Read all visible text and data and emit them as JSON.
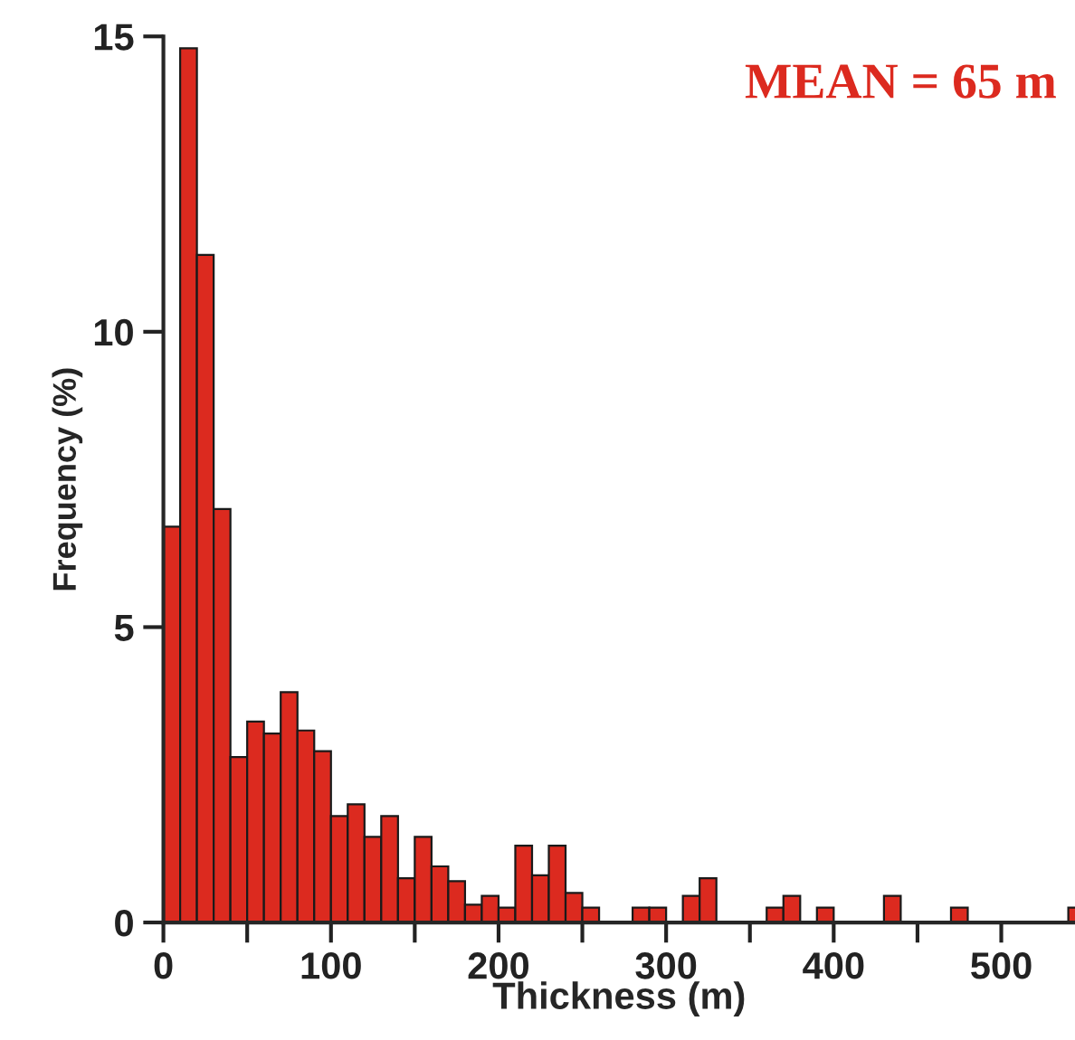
{
  "chart_data": {
    "type": "histogram",
    "xlabel": "Thickness (m)",
    "ylabel": "Frequency (%)",
    "annotations": [
      "MEAN = 65 m"
    ],
    "bins": [
      0,
      10,
      20,
      30,
      40,
      50,
      60,
      70,
      80,
      90,
      100,
      110,
      120,
      130,
      140,
      150,
      160,
      170,
      180,
      190,
      200,
      210,
      220,
      230,
      240,
      250,
      260,
      270,
      280,
      290,
      300,
      310,
      320,
      330,
      340,
      350,
      360,
      370,
      380,
      390,
      400,
      410,
      420,
      430,
      440,
      450,
      460,
      470,
      480,
      490,
      500,
      510,
      520,
      530,
      540,
      550
    ],
    "values": [
      6.7,
      14.8,
      11.3,
      7.0,
      2.8,
      3.4,
      3.2,
      3.9,
      3.25,
      2.9,
      1.8,
      2.0,
      1.45,
      1.8,
      0.75,
      1.45,
      0.95,
      0.7,
      0.3,
      0.45,
      0.25,
      1.3,
      0.8,
      1.3,
      0.5,
      0.25,
      0,
      0,
      0.25,
      0.25,
      0,
      0.45,
      0.75,
      0,
      0,
      0,
      0.25,
      0.45,
      0,
      0.25,
      0,
      0,
      0,
      0.45,
      0,
      0,
      0,
      0.25,
      0,
      0,
      0,
      0,
      0,
      0,
      0.25
    ],
    "color": "#dc2a1f",
    "xlim": [
      0,
      544
    ],
    "ylim": [
      0,
      15
    ],
    "xticks": [
      0,
      {
        "value": 50,
        "label": null
      },
      100,
      {
        "value": 150,
        "label": null
      },
      200,
      {
        "value": 250,
        "label": null
      },
      300,
      {
        "value": 350,
        "label": null
      },
      400,
      {
        "value": 450,
        "label": null
      },
      500
    ],
    "yticks": [
      0,
      5,
      10,
      15
    ],
    "grid": false,
    "legend": false
  }
}
